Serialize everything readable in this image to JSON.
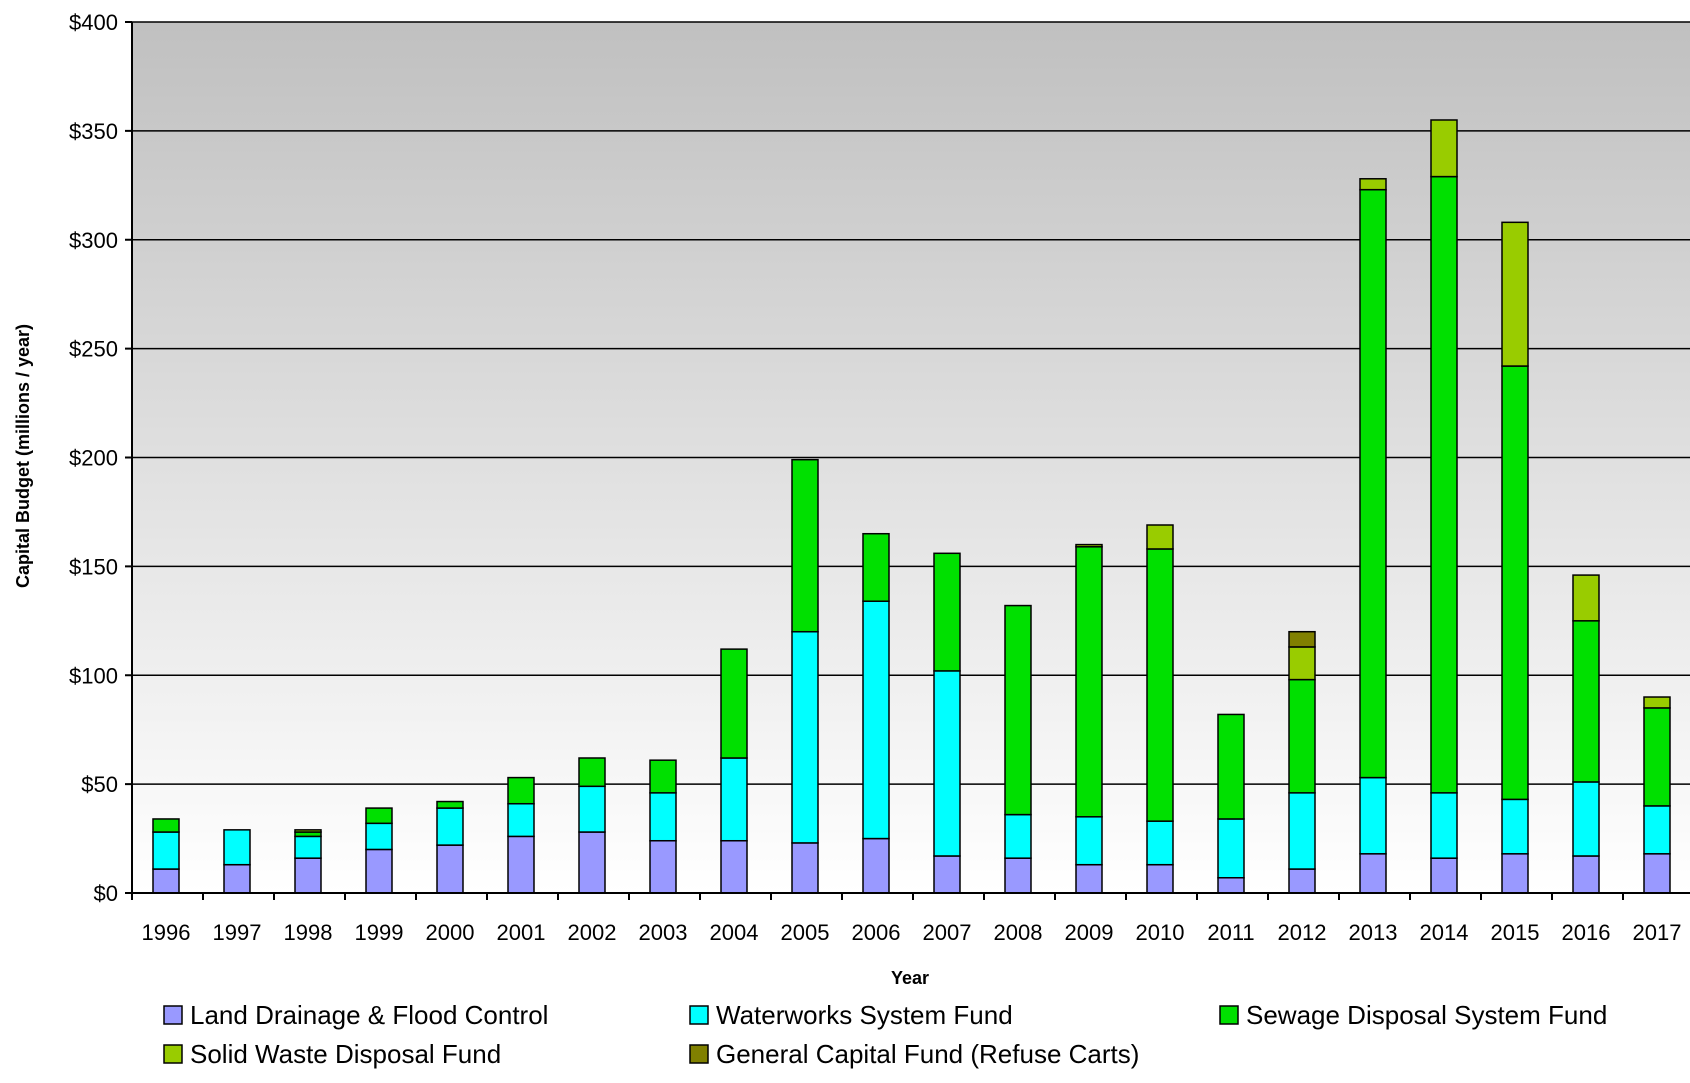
{
  "chart_data": {
    "type": "bar",
    "stacked": true,
    "xlabel": "Year",
    "ylabel": "Capital Budget (millions / year)",
    "ylim": [
      0,
      400
    ],
    "yticks": [
      "$0",
      "$50",
      "$100",
      "$150",
      "$200",
      "$250",
      "$300",
      "$350",
      "$400"
    ],
    "grid": true,
    "legend_position": "bottom",
    "categories": [
      "1996",
      "1997",
      "1998",
      "1999",
      "2000",
      "2001",
      "2002",
      "2003",
      "2004",
      "2005",
      "2006",
      "2007",
      "2008",
      "2009",
      "2010",
      "2011",
      "2012",
      "2013",
      "2014",
      "2015",
      "2016",
      "2017"
    ],
    "series": [
      {
        "name": "Land Drainage & Flood Control",
        "color": "#9999ff",
        "values": [
          11,
          13,
          16,
          20,
          22,
          26,
          28,
          24,
          24,
          23,
          25,
          17,
          16,
          13,
          13,
          7,
          11,
          18,
          16,
          18,
          17,
          18
        ]
      },
      {
        "name": "Waterworks System Fund",
        "color": "#00ffff",
        "values": [
          17,
          16,
          10,
          12,
          17,
          15,
          21,
          22,
          38,
          97,
          109,
          85,
          20,
          22,
          20,
          27,
          35,
          35,
          30,
          25,
          34,
          22
        ]
      },
      {
        "name": "Sewage Disposal System Fund",
        "color": "#00e000",
        "values": [
          6,
          0,
          2,
          7,
          3,
          12,
          13,
          15,
          50,
          79,
          31,
          54,
          96,
          124,
          125,
          48,
          52,
          270,
          283,
          199,
          74,
          45
        ]
      },
      {
        "name": "Solid Waste Disposal Fund",
        "color": "#99cc00",
        "values": [
          0,
          0,
          1,
          0,
          0,
          0,
          0,
          0,
          0,
          0,
          0,
          0,
          0,
          1,
          11,
          0,
          15,
          5,
          26,
          66,
          21,
          5
        ]
      },
      {
        "name": "General Capital Fund (Refuse Carts)",
        "color": "#808000",
        "values": [
          0,
          0,
          0,
          0,
          0,
          0,
          0,
          0,
          0,
          0,
          0,
          0,
          0,
          0,
          0,
          0,
          7,
          0,
          0,
          0,
          0,
          0
        ]
      }
    ]
  }
}
